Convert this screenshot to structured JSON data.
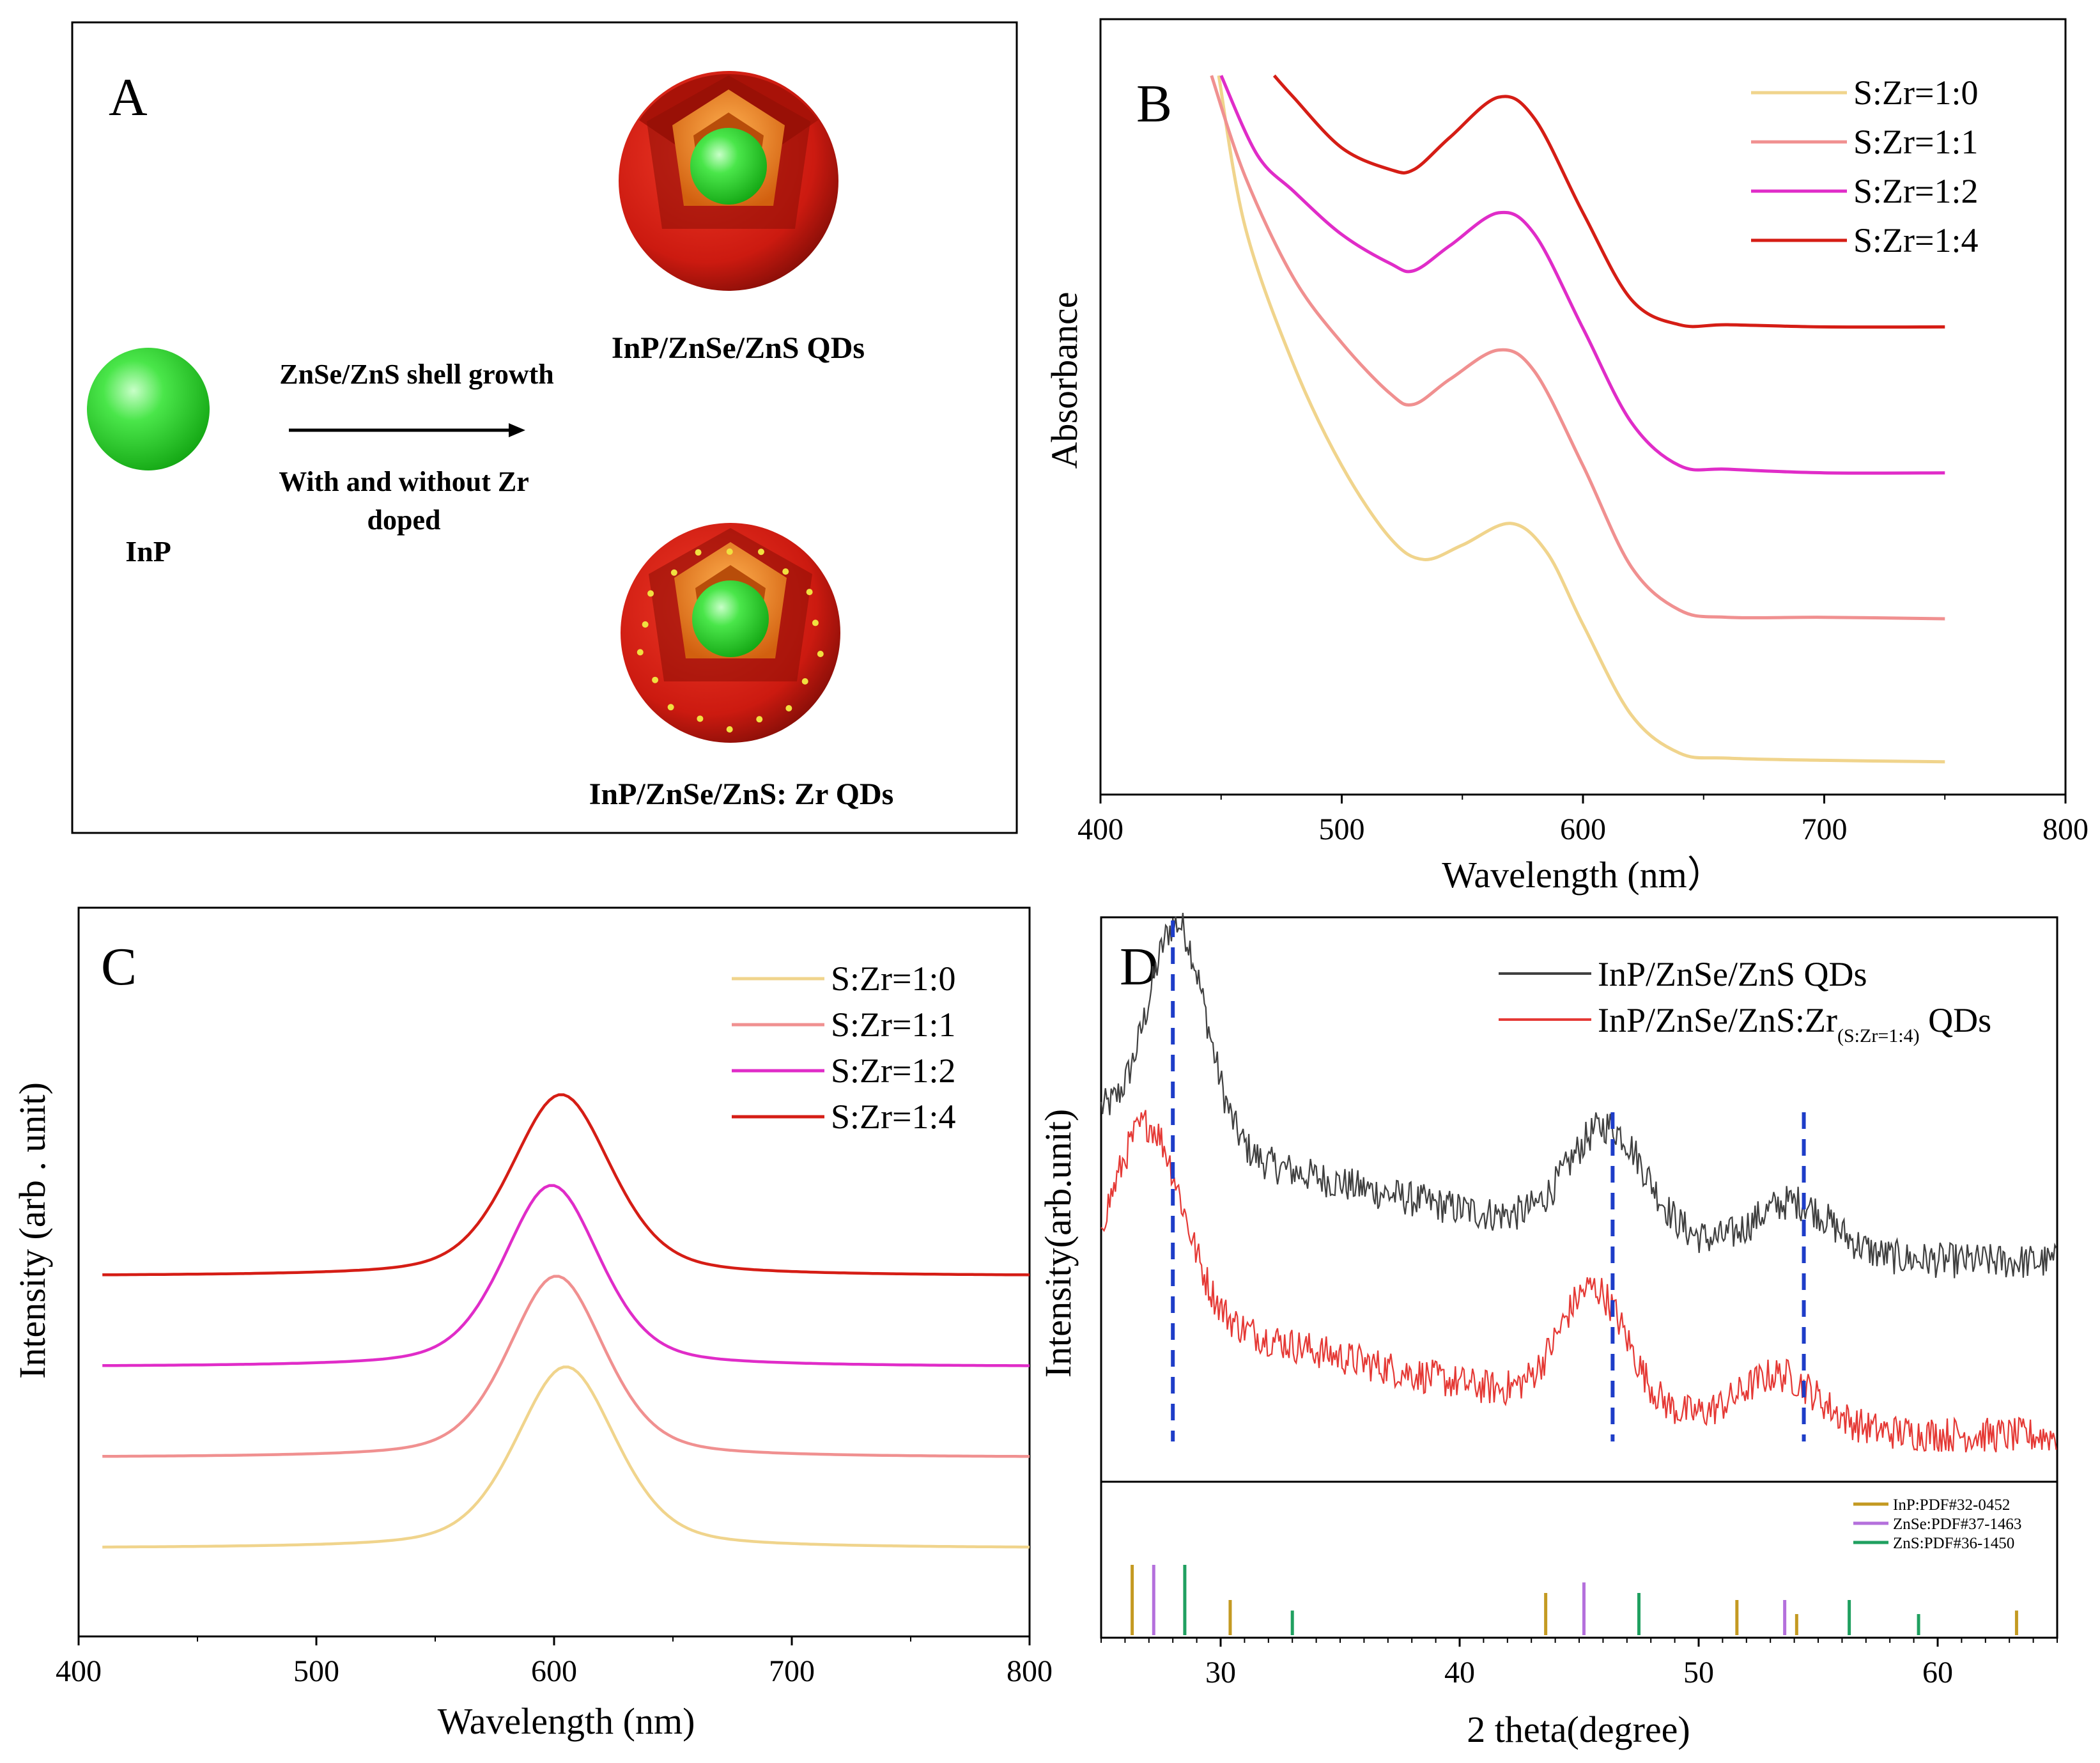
{
  "panel_a": {
    "letter": "A",
    "core_label": "InP",
    "arrow_top": "ZnSe/ZnS  shell growth",
    "arrow_bottom_1": "With and without Zr",
    "arrow_bottom_2": "doped",
    "qd_top_label": "InP/ZnSe/ZnS  QDs",
    "qd_bottom_label": "InP/ZnSe/ZnS:  Zr  QDs",
    "colors": {
      "core": "#33dd33",
      "shell1": "#e87a20",
      "shell2": "#cc1a10"
    }
  },
  "chart_data": [
    {
      "panel": "B",
      "type": "line",
      "xlabel": "Wavelength (nm）",
      "ylabel": "Absorbance",
      "xlim": [
        400,
        800
      ],
      "xticks": [
        400,
        500,
        600,
        700,
        800
      ],
      "legend_position": "top-right",
      "y_units": "arbitrary (offset traces)",
      "series": [
        {
          "name": "S:Zr=1:0",
          "color": "#f0d48c",
          "x": [
            449,
            460,
            480,
            500,
            520,
            534,
            550,
            570,
            585,
            600,
            620,
            640,
            660,
            700,
            750
          ],
          "y": [
            9.6,
            7.5,
            5.6,
            4.2,
            3.2,
            2.9,
            3.1,
            3.4,
            3.0,
            2.0,
            0.75,
            0.22,
            0.15,
            0.12,
            0.1
          ]
        },
        {
          "name": "S:Zr=1:1",
          "color": "#f09090",
          "x": [
            446,
            460,
            480,
            500,
            520,
            530,
            545,
            565,
            580,
            600,
            620,
            640,
            660,
            700,
            750
          ],
          "y": [
            9.6,
            8.2,
            6.8,
            5.9,
            5.2,
            5.05,
            5.4,
            5.8,
            5.5,
            4.2,
            2.8,
            2.2,
            2.1,
            2.1,
            2.08
          ]
        },
        {
          "name": "S:Zr=1:2",
          "color": "#e02cc8",
          "x": [
            450,
            465,
            480,
            500,
            520,
            530,
            545,
            565,
            580,
            600,
            620,
            640,
            660,
            700,
            750
          ],
          "y": [
            9.6,
            8.5,
            8.0,
            7.4,
            7.0,
            6.9,
            7.25,
            7.7,
            7.4,
            6.1,
            4.8,
            4.2,
            4.15,
            4.1,
            4.1
          ]
        },
        {
          "name": "S:Zr=1:4",
          "color": "#d51d15",
          "x": [
            472,
            480,
            500,
            520,
            530,
            545,
            565,
            580,
            600,
            620,
            640,
            660,
            700,
            750
          ],
          "y": [
            9.6,
            9.3,
            8.6,
            8.3,
            8.3,
            8.75,
            9.3,
            9.0,
            7.7,
            6.5,
            6.15,
            6.15,
            6.12,
            6.12
          ]
        }
      ]
    },
    {
      "panel": "C",
      "type": "line",
      "xlabel": "Wavelength (nm)",
      "ylabel": "Intensity (arb . unit)",
      "xlim": [
        400,
        800
      ],
      "xticks": [
        400,
        500,
        600,
        700,
        800
      ],
      "legend_position": "top-right",
      "y_units": "arbitrary (offset traces)",
      "x_range": [
        410,
        800
      ],
      "series": [
        {
          "name": "S:Zr=1:0",
          "color": "#f0d48c",
          "baseline": 0.0,
          "peak_center": 605,
          "peak_height": 1.7,
          "fwhm": 50
        },
        {
          "name": "S:Zr=1:1",
          "color": "#f09090",
          "baseline": 0.85,
          "peak_center": 601,
          "peak_height": 1.7,
          "fwhm": 48
        },
        {
          "name": "S:Zr=1:2",
          "color": "#e02cc8",
          "baseline": 1.7,
          "peak_center": 599,
          "peak_height": 1.7,
          "fwhm": 48
        },
        {
          "name": "S:Zr=1:4",
          "color": "#d51d15",
          "baseline": 2.55,
          "peak_center": 603,
          "peak_height": 1.7,
          "fwhm": 50
        }
      ]
    },
    {
      "panel": "D",
      "type": "line",
      "xlabel": "2 theta(degree)",
      "ylabel": "Intensity(arb.unit)",
      "xlim": [
        25,
        65
      ],
      "xticks": [
        30,
        40,
        50,
        60
      ],
      "legend_position": "top-right",
      "y_units": "arbitrary (offset traces)",
      "series": [
        {
          "name": "InP/ZnSe/ZnS QDs",
          "color": "#404040",
          "baseline_start": 6.6,
          "baseline_end": 3.7,
          "peaks": [
            [
              28.2,
              4.2,
              1.2
            ],
            [
              46.2,
              2.1,
              1.6
            ],
            [
              54.0,
              1.0,
              1.6
            ]
          ],
          "noise": 0.35
        },
        {
          "name_main": "InP/ZnSe/ZnS:Zr",
          "name_sub": "(S:Zr=1:4)",
          "name_tail": " QDs",
          "color": "#e53935",
          "baseline_start": 3.2,
          "baseline_end": 0.3,
          "peaks": [
            [
              27.0,
              3.5,
              1.4
            ],
            [
              45.6,
              2.3,
              1.4
            ],
            [
              53.4,
              1.0,
              1.6
            ]
          ],
          "noise": 0.35
        }
      ],
      "dashed_lines": [
        28.0,
        46.4,
        54.4
      ],
      "dashed_color": "#1e3dc8",
      "reference": {
        "legend": [
          {
            "label": "InP:PDF#32-0452",
            "color": "#c49a22"
          },
          {
            "label": "ZnSe:PDF#37-1463",
            "color": "#b470dc"
          },
          {
            "label": "ZnS:PDF#36-1450",
            "color": "#20a060"
          }
        ],
        "sticks": [
          {
            "x": 26.3,
            "h": 1.0,
            "ref": 0
          },
          {
            "x": 27.2,
            "h": 1.0,
            "ref": 1
          },
          {
            "x": 28.5,
            "h": 1.0,
            "ref": 2
          },
          {
            "x": 30.4,
            "h": 0.5,
            "ref": 0
          },
          {
            "x": 33.0,
            "h": 0.35,
            "ref": 2
          },
          {
            "x": 43.6,
            "h": 0.6,
            "ref": 0
          },
          {
            "x": 45.2,
            "h": 0.75,
            "ref": 1
          },
          {
            "x": 47.5,
            "h": 0.6,
            "ref": 2
          },
          {
            "x": 51.6,
            "h": 0.5,
            "ref": 0
          },
          {
            "x": 53.6,
            "h": 0.5,
            "ref": 1
          },
          {
            "x": 54.1,
            "h": 0.3,
            "ref": 0
          },
          {
            "x": 56.3,
            "h": 0.5,
            "ref": 2
          },
          {
            "x": 59.2,
            "h": 0.3,
            "ref": 2
          },
          {
            "x": 63.3,
            "h": 0.35,
            "ref": 0
          }
        ]
      }
    }
  ],
  "panel_letters": {
    "b": "B",
    "c": "C",
    "d": "D"
  }
}
